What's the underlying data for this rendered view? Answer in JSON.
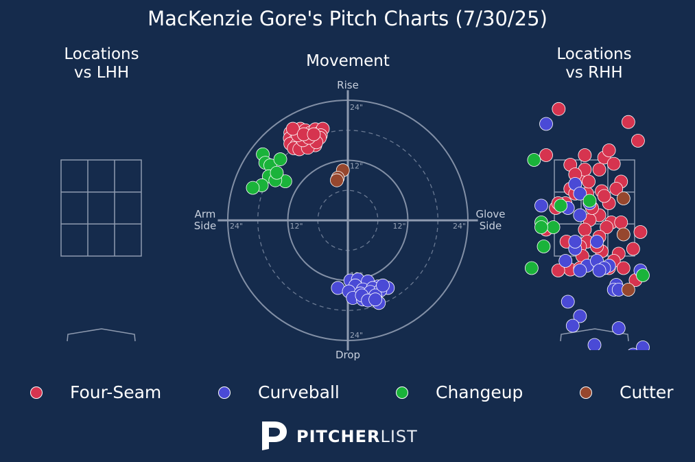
{
  "title": "MacKenzie Gore's Pitch Charts (7/30/25)",
  "colors": {
    "background": "#152b4c",
    "four_seam": "#d6344f",
    "curveball": "#4a4ad6",
    "changeup": "#1ab33a",
    "cutter": "#96472e",
    "grid": "#8f9bb0"
  },
  "legend": [
    {
      "name": "Four-Seam",
      "color": "#d6344f"
    },
    {
      "name": "Curveball",
      "color": "#4a4ad6"
    },
    {
      "name": "Changeup",
      "color": "#1ab33a"
    },
    {
      "name": "Cutter",
      "color": "#96472e"
    }
  ],
  "logo": {
    "bold": "PITCHER",
    "light": "LIST",
    "icon": "pitcherlist-p-icon"
  },
  "chart_data": [
    {
      "type": "scatter",
      "title": "Locations\nvs LHH",
      "series": []
    },
    {
      "type": "scatter",
      "title": "Movement",
      "labels": {
        "top": "Rise",
        "bottom": "Drop",
        "left": "Arm\nSide",
        "right": "Glove\nSide"
      },
      "ring_labels": [
        "12\"",
        "24\""
      ],
      "xlim": [
        -24,
        24
      ],
      "ylim": [
        -24,
        24
      ],
      "series": [
        {
          "name": "Four-Seam",
          "points": [
            [
              -11.5,
              17.5
            ],
            [
              -10.5,
              17.8
            ],
            [
              -9.5,
              18.3
            ],
            [
              -8.5,
              18.0
            ],
            [
              -7.5,
              17.5
            ],
            [
              -6.5,
              18.2
            ],
            [
              -5.5,
              17.6
            ],
            [
              -5.0,
              18.3
            ],
            [
              -5.4,
              17.0
            ],
            [
              -11.6,
              16.4
            ],
            [
              -10.5,
              16.0
            ],
            [
              -9.6,
              16.5
            ],
            [
              -8.4,
              16.6
            ],
            [
              -7.5,
              16.2
            ],
            [
              -6.6,
              16.8
            ],
            [
              -5.6,
              16.5
            ],
            [
              -11.5,
              15.3
            ],
            [
              -10.3,
              15.0
            ],
            [
              -9.3,
              14.8
            ],
            [
              -8.2,
              15.2
            ],
            [
              -7.2,
              15.3
            ],
            [
              -6.5,
              15.0
            ],
            [
              -10.8,
              14.4
            ],
            [
              -9.7,
              14.2
            ],
            [
              -8.0,
              14.5
            ],
            [
              -6.3,
              15.6
            ],
            [
              -9.0,
              16.0
            ],
            [
              -7.8,
              16.5
            ],
            [
              -10.0,
              17.0
            ],
            [
              -11.0,
              18.3
            ],
            [
              -8.8,
              17.2
            ],
            [
              -6.8,
              17.2
            ]
          ]
        },
        {
          "name": "Curveball",
          "points": [
            [
              -2.0,
              -13.5
            ],
            [
              0.5,
              -12.0
            ],
            [
              2.0,
              -11.8
            ],
            [
              4.0,
              -12.2
            ],
            [
              6.0,
              -13.2
            ],
            [
              8.0,
              -13.5
            ],
            [
              1.5,
              -13.0
            ],
            [
              3.0,
              -13.8
            ],
            [
              5.0,
              -13.5
            ],
            [
              0.2,
              -14.2
            ],
            [
              2.5,
              -14.6
            ],
            [
              4.5,
              -14.3
            ],
            [
              6.5,
              -14.0
            ],
            [
              1.0,
              -15.5
            ],
            [
              3.0,
              -15.8
            ],
            [
              5.5,
              -15.0
            ],
            [
              7.0,
              -13.0
            ],
            [
              2.8,
              -15.0
            ],
            [
              6.2,
              -16.5
            ],
            [
              4.0,
              -16.0
            ],
            [
              5.5,
              -15.8
            ]
          ]
        },
        {
          "name": "Changeup",
          "points": [
            [
              -17.0,
              13.2
            ],
            [
              -16.5,
              11.5
            ],
            [
              -15.5,
              11.0
            ],
            [
              -14.2,
              9.0
            ],
            [
              -15.8,
              8.8
            ],
            [
              -17.2,
              7.0
            ],
            [
              -12.5,
              7.8
            ],
            [
              -14.5,
              8.0
            ],
            [
              -19.0,
              6.5
            ],
            [
              -14.2,
              9.5
            ],
            [
              -13.5,
              12.2
            ]
          ]
        },
        {
          "name": "Cutter",
          "points": [
            [
              -1.0,
              10.0
            ],
            [
              -2.0,
              8.5
            ],
            [
              -2.2,
              8.0
            ]
          ]
        }
      ]
    },
    {
      "type": "scatter",
      "title": "Locations\nvs RHH",
      "series": [
        {
          "name": "Four-Seam",
          "points": [
            [
              -0.74,
              4.56
            ],
            [
              0.7,
              4.29
            ],
            [
              0.9,
              3.9
            ],
            [
              -1.0,
              3.6
            ],
            [
              -0.2,
              3.6
            ],
            [
              0.2,
              3.55
            ],
            [
              0.4,
              3.42
            ],
            [
              0.1,
              3.3
            ],
            [
              -0.3,
              3.15
            ],
            [
              0.55,
              3.05
            ],
            [
              -0.5,
              2.9
            ],
            [
              -0.15,
              2.8
            ],
            [
              0.15,
              2.85
            ],
            [
              0.3,
              2.6
            ],
            [
              -0.6,
              2.6
            ],
            [
              -0.4,
              2.8
            ],
            [
              0.1,
              2.35
            ],
            [
              0.35,
              2.2
            ],
            [
              -0.8,
              2.5
            ],
            [
              -0.1,
              2.25
            ],
            [
              0.25,
              2.1
            ],
            [
              0.55,
              2.2
            ],
            [
              0.95,
              2.0
            ],
            [
              -0.2,
              2.05
            ],
            [
              0.1,
              1.9
            ],
            [
              -0.15,
              1.8
            ],
            [
              0.5,
              1.55
            ],
            [
              0.8,
              1.65
            ],
            [
              -0.3,
              1.7
            ],
            [
              0.4,
              1.4
            ],
            [
              0.3,
              1.25
            ],
            [
              -0.25,
              1.5
            ],
            [
              0.6,
              1.25
            ],
            [
              -0.5,
              1.22
            ],
            [
              -0.3,
              1.25
            ],
            [
              -0.75,
              1.2
            ],
            [
              -1.0,
              2.05
            ],
            [
              -0.05,
              2.5
            ],
            [
              0.3,
              3.7
            ],
            [
              -0.5,
              3.4
            ],
            [
              -0.2,
              3.3
            ],
            [
              -0.4,
              3.2
            ],
            [
              0.15,
              1.6
            ],
            [
              -0.12,
              3.05
            ],
            [
              0.85,
              1.0
            ],
            [
              0.05,
              1.7
            ],
            [
              -0.58,
              1.8
            ],
            [
              0.2,
              2.75
            ],
            [
              0.45,
              2.9
            ],
            [
              -0.75,
              2.6
            ]
          ]
        },
        {
          "name": "Curveball",
          "points": [
            [
              -1.0,
              4.25
            ],
            [
              -0.4,
              3.0
            ],
            [
              -0.3,
              2.8
            ],
            [
              -0.3,
              2.35
            ],
            [
              -0.55,
              2.5
            ],
            [
              0.05,
              1.8
            ],
            [
              -0.4,
              1.65
            ],
            [
              -0.15,
              1.3
            ],
            [
              0.05,
              1.4
            ],
            [
              0.3,
              1.3
            ],
            [
              0.2,
              1.25
            ],
            [
              -0.3,
              1.2
            ],
            [
              0.1,
              1.2
            ],
            [
              0.45,
              0.9
            ],
            [
              0.4,
              0.8
            ],
            [
              -0.55,
              0.55
            ],
            [
              -0.3,
              0.25
            ],
            [
              -0.45,
              0.05
            ],
            [
              0.5,
              0.0
            ],
            [
              0.95,
              1.2
            ],
            [
              -1.1,
              2.55
            ],
            [
              -0.6,
              1.4
            ],
            [
              -0.1,
              2.6
            ],
            [
              0.8,
              -0.55
            ],
            [
              1.0,
              -0.4
            ],
            [
              0.0,
              -0.35
            ],
            [
              -0.4,
              1.8
            ],
            [
              0.5,
              0.8
            ]
          ]
        },
        {
          "name": "Changeup",
          "points": [
            [
              -1.25,
              3.5
            ],
            [
              -1.1,
              2.2
            ],
            [
              -0.85,
              2.1
            ],
            [
              -1.05,
              1.7
            ],
            [
              -1.3,
              1.25
            ],
            [
              -0.1,
              2.65
            ],
            [
              -0.7,
              2.55
            ],
            [
              1.0,
              1.1
            ],
            [
              -1.1,
              2.1
            ]
          ]
        },
        {
          "name": "Cutter",
          "points": [
            [
              0.6,
              2.7
            ],
            [
              0.6,
              1.95
            ],
            [
              0.7,
              0.8
            ]
          ]
        }
      ]
    }
  ]
}
